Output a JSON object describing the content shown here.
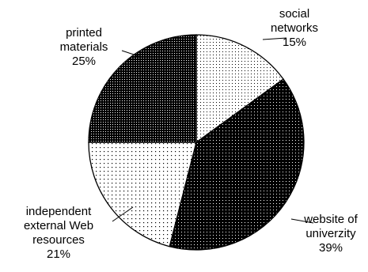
{
  "chart_data": {
    "type": "pie",
    "title": "",
    "slices": [
      {
        "name": "social networks",
        "value": 15,
        "label_lines": [
          "social",
          "networks"
        ],
        "pct_label": "15%",
        "pattern": "sparse-dots"
      },
      {
        "name": "website of univerzity",
        "value": 39,
        "label_lines": [
          "website of",
          "univerzity"
        ],
        "pct_label": "39%",
        "pattern": "dense-black"
      },
      {
        "name": "independent external Web resources",
        "value": 21,
        "label_lines": [
          "independent",
          "external Web",
          "resources"
        ],
        "pct_label": "21%",
        "pattern": "light-dots"
      },
      {
        "name": "printed materials",
        "value": 25,
        "label_lines": [
          "printed",
          "materials"
        ],
        "pct_label": "25%",
        "pattern": "dark-dots"
      }
    ],
    "start": "12 o'clock",
    "direction": "clockwise",
    "legend": "none"
  }
}
